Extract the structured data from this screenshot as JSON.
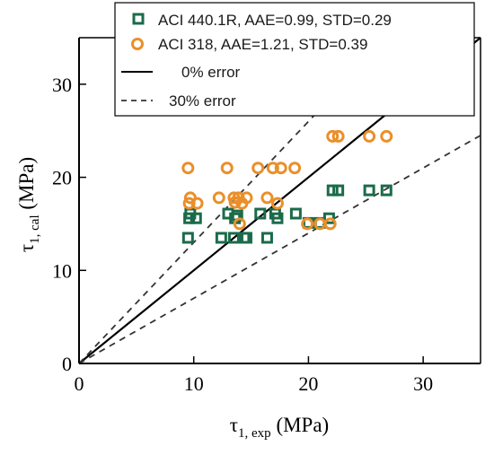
{
  "chart_data": {
    "type": "scatter",
    "xlabel": {
      "main": "τ",
      "sub": "1, exp",
      "unit": " (MPa)"
    },
    "ylabel": {
      "main": "τ",
      "sub": "1, cal",
      "unit": " (MPa)"
    },
    "xlim": [
      0,
      35
    ],
    "ylim": [
      0,
      35
    ],
    "xticks": [
      0,
      10,
      20,
      30
    ],
    "yticks": [
      0,
      10,
      20,
      30
    ],
    "grid": false,
    "legend_position": "top-right",
    "series": [
      {
        "name": "ACI 440.1R, AAE=0.99, STD=0.29",
        "marker": "square",
        "color": "#1b6b4a",
        "x": [
          9.5,
          9.6,
          10.2,
          9.7,
          12.4,
          13.0,
          13.5,
          13.6,
          13.8,
          14.4,
          14.6,
          15.8,
          16.4,
          17.1,
          17.3,
          18.9,
          20.0,
          21.0,
          21.8,
          22.1,
          22.6,
          25.3,
          26.8
        ],
        "y": [
          13.5,
          15.6,
          15.6,
          16.1,
          13.5,
          16.1,
          13.5,
          15.6,
          15.9,
          13.5,
          13.5,
          16.1,
          13.5,
          16.1,
          15.6,
          16.1,
          15.1,
          15.1,
          15.6,
          18.6,
          18.6,
          18.6,
          18.6
        ]
      },
      {
        "name": "ACI 318, AAE=1.21, STD=0.39",
        "marker": "circle",
        "color": "#ea8f2a",
        "x": [
          9.5,
          9.6,
          9.7,
          10.3,
          12.2,
          12.9,
          13.5,
          13.6,
          13.9,
          14.0,
          14.2,
          14.6,
          15.6,
          16.4,
          16.9,
          17.3,
          17.6,
          18.8,
          19.9,
          21.0,
          21.9,
          22.1,
          22.6,
          25.3,
          26.8
        ],
        "y": [
          21.0,
          17.2,
          17.8,
          17.2,
          17.8,
          21.0,
          17.8,
          17.3,
          17.8,
          15.0,
          17.2,
          17.8,
          21.0,
          17.8,
          21.0,
          17.2,
          21.0,
          21.0,
          15.0,
          15.0,
          15.0,
          24.4,
          24.4,
          24.4,
          24.4
        ]
      }
    ],
    "reference_lines": [
      {
        "name": "0% error",
        "style": "solid",
        "color": "#000000",
        "slope": 1.0
      },
      {
        "name": "30% error",
        "style": "dashed",
        "color": "#333333",
        "slopes": [
          1.3,
          0.7
        ]
      }
    ]
  }
}
